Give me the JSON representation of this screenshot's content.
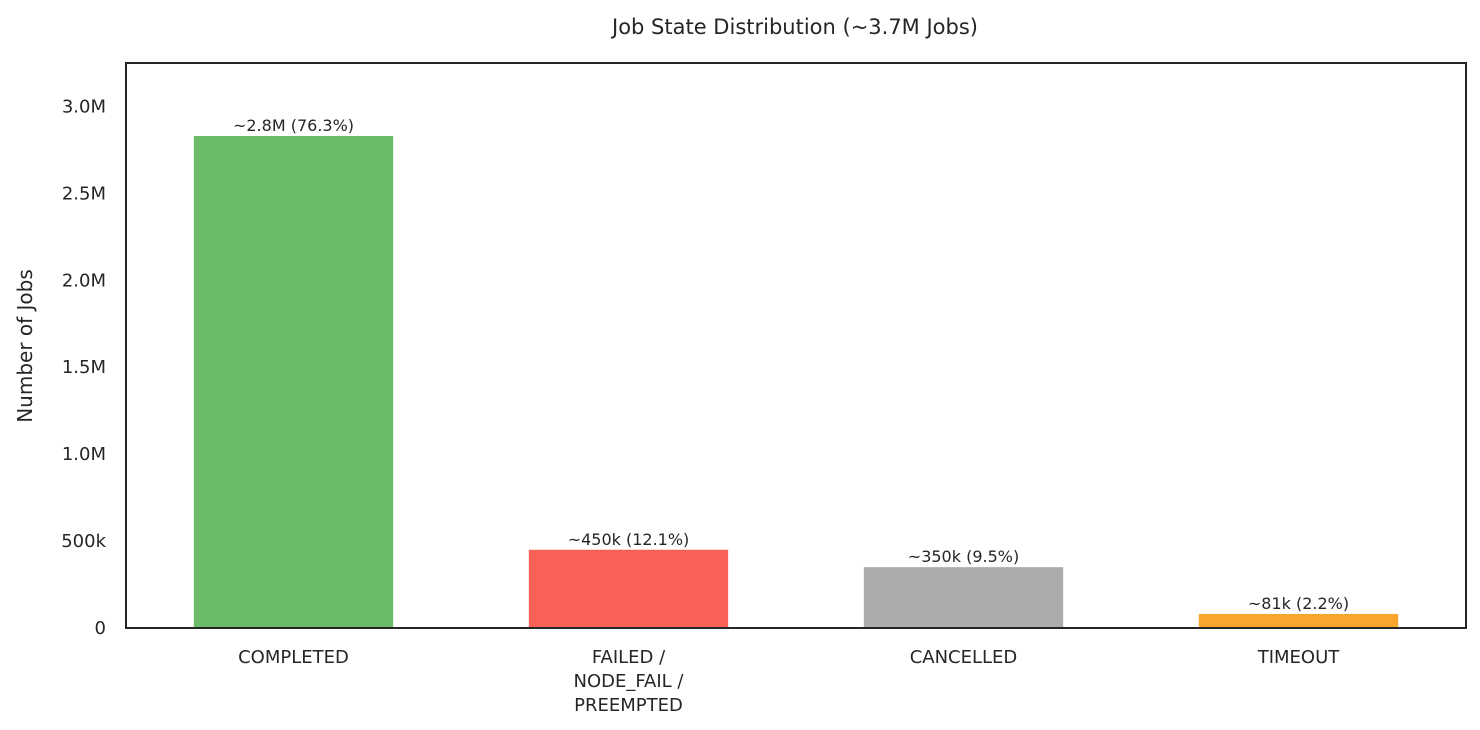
{
  "chart_data": {
    "type": "bar",
    "title": "Job State Distribution (~3.7M Jobs)",
    "xlabel": "",
    "ylabel": "Number of Jobs",
    "ylim": [
      0,
      3250000
    ],
    "grid": false,
    "categories": [
      [
        "COMPLETED"
      ],
      [
        "FAILED /",
        "NODE_FAIL /",
        "PREEMPTED"
      ],
      [
        "CANCELLED"
      ],
      [
        "TIMEOUT"
      ]
    ],
    "values": [
      2830000,
      450000,
      350000,
      81000
    ],
    "data_labels": [
      "~2.8M (76.3%)",
      "~450k (12.1%)",
      "~350k (9.5%)",
      "~81k (2.2%)"
    ],
    "colors": [
      "#6abb6a",
      "#f76157",
      "#acacac",
      "#f9a72c"
    ],
    "yticks": [
      {
        "value": 0,
        "label": "0"
      },
      {
        "value": 500000,
        "label": "500k"
      },
      {
        "value": 1000000,
        "label": "1.0M"
      },
      {
        "value": 1500000,
        "label": "1.5M"
      },
      {
        "value": 2000000,
        "label": "2.0M"
      },
      {
        "value": 2500000,
        "label": "2.5M"
      },
      {
        "value": 3000000,
        "label": "3.0M"
      }
    ]
  }
}
